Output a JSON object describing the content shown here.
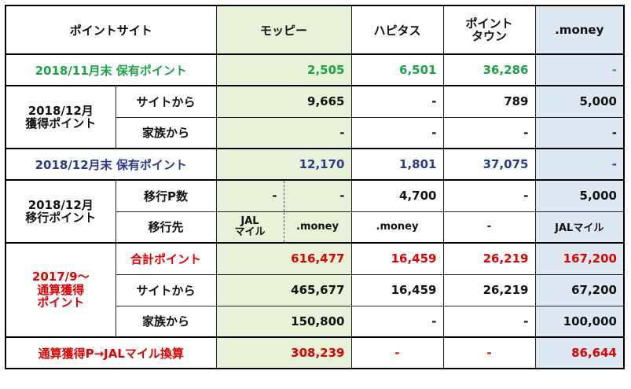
{
  "header": {
    "site": "ポイントサイト",
    "moppy": "モッピー",
    "hapitas": "ハピタス",
    "pointtown": "ポイント\nタウン",
    "money": ".money"
  },
  "nov_held": {
    "label": "2018/11月末 保有ポイント",
    "moppy": "2,505",
    "hapitas": "6,501",
    "pointtown": "36,286",
    "money": "-"
  },
  "dec_earned": {
    "label": "2018/12月\n獲得ポイント",
    "site_label": "サイトから",
    "family_label": "家族から",
    "site": {
      "moppy": "9,665",
      "hapitas": "-",
      "pointtown": "789",
      "money": "5,000"
    },
    "family": {
      "moppy": "-",
      "hapitas": "-",
      "pointtown": "-",
      "money": "-"
    }
  },
  "dec_held": {
    "label": "2018/12月末 保有ポイント",
    "moppy": "12,170",
    "hapitas": "1,801",
    "pointtown": "37,075",
    "money": "-"
  },
  "dec_transfer": {
    "label": "2018/12月\n移行ポイント",
    "count_label": "移行P数",
    "dest_label": "移行先",
    "count": {
      "moppy_a": "-",
      "moppy_b": "-",
      "hapitas": "4,700",
      "pointtown": "-",
      "money": "5,000"
    },
    "dest": {
      "moppy_a": "JAL\nマイル",
      "moppy_b": ".money",
      "hapitas": ".money",
      "pointtown": "-",
      "money": "JALマイル"
    }
  },
  "cumulative": {
    "label": "2017/9～\n通算獲得\nポイント",
    "total_label": "合計ポイント",
    "site_label": "サイトから",
    "family_label": "家族から",
    "total": {
      "moppy": "616,477",
      "hapitas": "16,459",
      "pointtown": "26,219",
      "money": "167,200"
    },
    "site": {
      "moppy": "465,677",
      "hapitas": "16,459",
      "pointtown": "26,219",
      "money": "67,200"
    },
    "family": {
      "moppy": "150,800",
      "hapitas": "-",
      "pointtown": "-",
      "money": "100,000"
    }
  },
  "jal": {
    "label": "通算獲得P→JALマイル換算",
    "moppy": "308,239",
    "hapitas": "-",
    "pointtown": "-",
    "money": "86,644"
  }
}
